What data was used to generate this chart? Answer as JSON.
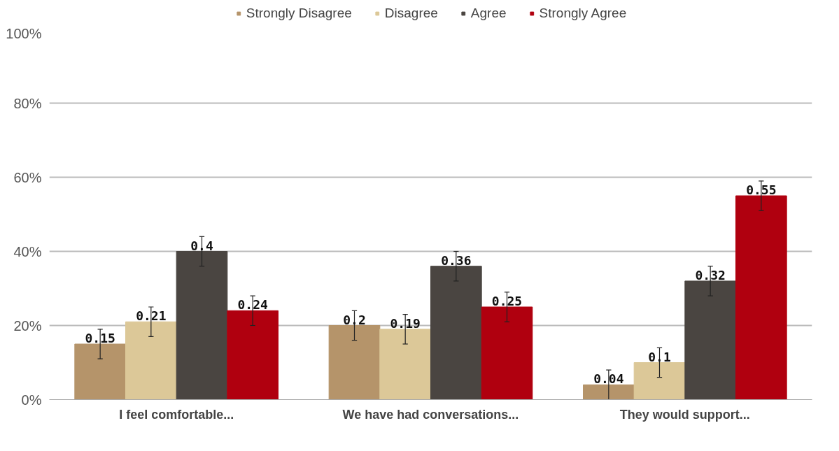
{
  "chart_data": {
    "type": "bar",
    "categories": [
      "I feel comfortable...",
      "We have had conversations...",
      "They would support..."
    ],
    "series": [
      {
        "name": "Strongly Disagree",
        "color": "#b5946a",
        "values": [
          0.15,
          0.2,
          0.04
        ],
        "errors": [
          0.04,
          0.04,
          0.04
        ]
      },
      {
        "name": "Disagree",
        "color": "#dcc898",
        "values": [
          0.21,
          0.19,
          0.1
        ],
        "errors": [
          0.04,
          0.04,
          0.04
        ]
      },
      {
        "name": "Agree",
        "color": "#4a4541",
        "values": [
          0.4,
          0.36,
          0.32
        ],
        "errors": [
          0.04,
          0.04,
          0.04
        ]
      },
      {
        "name": "Strongly Agree",
        "color": "#b0000f",
        "values": [
          0.24,
          0.25,
          0.55
        ],
        "errors": [
          0.04,
          0.04,
          0.04
        ]
      }
    ],
    "ylim": [
      0,
      1
    ],
    "yticks": [
      {
        "value": 0,
        "label": "0%"
      },
      {
        "value": 0.2,
        "label": "20%"
      },
      {
        "value": 0.4,
        "label": "40%"
      },
      {
        "value": 0.6,
        "label": "60%"
      },
      {
        "value": 0.8,
        "label": "80%"
      },
      {
        "value": 1,
        "label": "100%"
      }
    ],
    "grid": "y",
    "legend": "top",
    "data_labels": true
  }
}
